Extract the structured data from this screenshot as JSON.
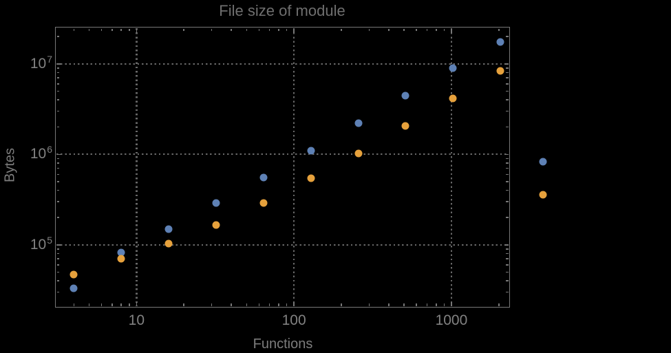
{
  "colors": {
    "background": "#000000",
    "frame": "#787878",
    "grid": "#696969",
    "tick_label": "#828282",
    "title_text": "#6f6f6f",
    "axis_label_text": "#7d7d7d",
    "series_blue": "#5e81b5",
    "series_orange": "#e6a13c"
  },
  "chart_data": {
    "type": "scatter",
    "title": "File size of module",
    "xlabel": "Functions",
    "ylabel": "Bytes",
    "x_scale": "log",
    "y_scale": "log",
    "xlim": [
      3.07,
      2330
    ],
    "ylim": [
      20600,
      25200000
    ],
    "grid": "dotted gridlines at decades only",
    "legend": "none",
    "x_ticks": [
      10,
      100,
      1000
    ],
    "x_tick_labels": [
      "10",
      "100",
      "1000"
    ],
    "y_ticks": [
      100000,
      1000000,
      10000000
    ],
    "y_tick_labels": [
      {
        "base": "10",
        "exp": "5"
      },
      {
        "base": "10",
        "exp": "6"
      },
      {
        "base": "10",
        "exp": "7"
      }
    ],
    "x": [
      4,
      8,
      16,
      32,
      64,
      128,
      256,
      512,
      1024,
      2048,
      3800
    ],
    "series": [
      {
        "name": "blue",
        "color": "#5e81b5",
        "values": [
          33000,
          82000,
          150000,
          288000,
          550000,
          1100000,
          2200000,
          4450000,
          8950000,
          17500000,
          830000
        ]
      },
      {
        "name": "orange",
        "color": "#e6a13c",
        "values": [
          47000,
          70000,
          104000,
          166000,
          288000,
          540000,
          1030000,
          2060000,
          4150000,
          8300000,
          360000
        ]
      }
    ],
    "note": "last pair of points lies to the right of the plot frame (unclipped)"
  }
}
